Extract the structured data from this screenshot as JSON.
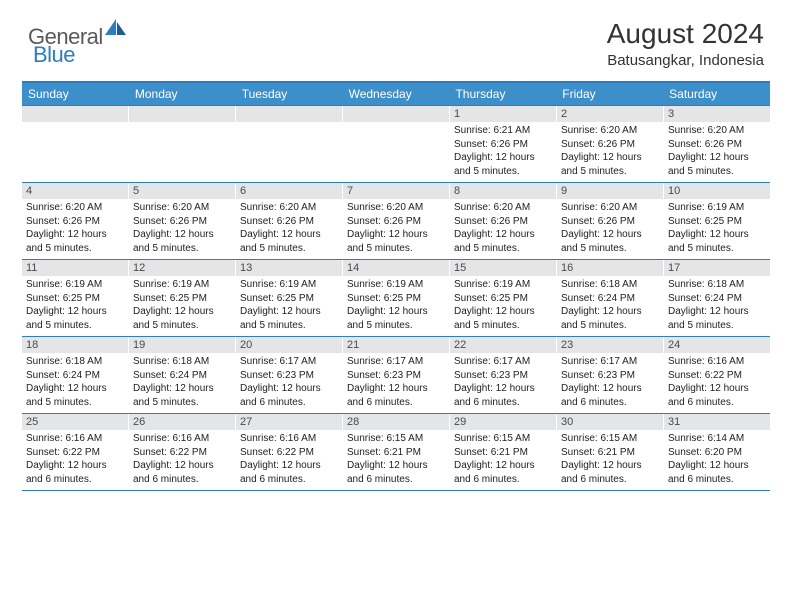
{
  "brand": {
    "general": "General",
    "blue": "Blue"
  },
  "title": "August 2024",
  "location": "Batusangkar, Indonesia",
  "colors": {
    "header_bar": "#3d8fc9",
    "border": "#2d7dc0",
    "day_num_bg": "#e4e5e6",
    "text": "#222222",
    "logo_gray": "#5a5a5a",
    "logo_blue": "#2d7dc0"
  },
  "weekdays": [
    "Sunday",
    "Monday",
    "Tuesday",
    "Wednesday",
    "Thursday",
    "Friday",
    "Saturday"
  ],
  "weeks": [
    [
      {
        "empty": true
      },
      {
        "empty": true
      },
      {
        "empty": true
      },
      {
        "empty": true
      },
      {
        "day": "1",
        "sunrise": "Sunrise: 6:21 AM",
        "sunset": "Sunset: 6:26 PM",
        "daylight": "Daylight: 12 hours and 5 minutes."
      },
      {
        "day": "2",
        "sunrise": "Sunrise: 6:20 AM",
        "sunset": "Sunset: 6:26 PM",
        "daylight": "Daylight: 12 hours and 5 minutes."
      },
      {
        "day": "3",
        "sunrise": "Sunrise: 6:20 AM",
        "sunset": "Sunset: 6:26 PM",
        "daylight": "Daylight: 12 hours and 5 minutes."
      }
    ],
    [
      {
        "day": "4",
        "sunrise": "Sunrise: 6:20 AM",
        "sunset": "Sunset: 6:26 PM",
        "daylight": "Daylight: 12 hours and 5 minutes."
      },
      {
        "day": "5",
        "sunrise": "Sunrise: 6:20 AM",
        "sunset": "Sunset: 6:26 PM",
        "daylight": "Daylight: 12 hours and 5 minutes."
      },
      {
        "day": "6",
        "sunrise": "Sunrise: 6:20 AM",
        "sunset": "Sunset: 6:26 PM",
        "daylight": "Daylight: 12 hours and 5 minutes."
      },
      {
        "day": "7",
        "sunrise": "Sunrise: 6:20 AM",
        "sunset": "Sunset: 6:26 PM",
        "daylight": "Daylight: 12 hours and 5 minutes."
      },
      {
        "day": "8",
        "sunrise": "Sunrise: 6:20 AM",
        "sunset": "Sunset: 6:26 PM",
        "daylight": "Daylight: 12 hours and 5 minutes."
      },
      {
        "day": "9",
        "sunrise": "Sunrise: 6:20 AM",
        "sunset": "Sunset: 6:26 PM",
        "daylight": "Daylight: 12 hours and 5 minutes."
      },
      {
        "day": "10",
        "sunrise": "Sunrise: 6:19 AM",
        "sunset": "Sunset: 6:25 PM",
        "daylight": "Daylight: 12 hours and 5 minutes."
      }
    ],
    [
      {
        "day": "11",
        "sunrise": "Sunrise: 6:19 AM",
        "sunset": "Sunset: 6:25 PM",
        "daylight": "Daylight: 12 hours and 5 minutes."
      },
      {
        "day": "12",
        "sunrise": "Sunrise: 6:19 AM",
        "sunset": "Sunset: 6:25 PM",
        "daylight": "Daylight: 12 hours and 5 minutes."
      },
      {
        "day": "13",
        "sunrise": "Sunrise: 6:19 AM",
        "sunset": "Sunset: 6:25 PM",
        "daylight": "Daylight: 12 hours and 5 minutes."
      },
      {
        "day": "14",
        "sunrise": "Sunrise: 6:19 AM",
        "sunset": "Sunset: 6:25 PM",
        "daylight": "Daylight: 12 hours and 5 minutes."
      },
      {
        "day": "15",
        "sunrise": "Sunrise: 6:19 AM",
        "sunset": "Sunset: 6:25 PM",
        "daylight": "Daylight: 12 hours and 5 minutes."
      },
      {
        "day": "16",
        "sunrise": "Sunrise: 6:18 AM",
        "sunset": "Sunset: 6:24 PM",
        "daylight": "Daylight: 12 hours and 5 minutes."
      },
      {
        "day": "17",
        "sunrise": "Sunrise: 6:18 AM",
        "sunset": "Sunset: 6:24 PM",
        "daylight": "Daylight: 12 hours and 5 minutes."
      }
    ],
    [
      {
        "day": "18",
        "sunrise": "Sunrise: 6:18 AM",
        "sunset": "Sunset: 6:24 PM",
        "daylight": "Daylight: 12 hours and 5 minutes."
      },
      {
        "day": "19",
        "sunrise": "Sunrise: 6:18 AM",
        "sunset": "Sunset: 6:24 PM",
        "daylight": "Daylight: 12 hours and 5 minutes."
      },
      {
        "day": "20",
        "sunrise": "Sunrise: 6:17 AM",
        "sunset": "Sunset: 6:23 PM",
        "daylight": "Daylight: 12 hours and 6 minutes."
      },
      {
        "day": "21",
        "sunrise": "Sunrise: 6:17 AM",
        "sunset": "Sunset: 6:23 PM",
        "daylight": "Daylight: 12 hours and 6 minutes."
      },
      {
        "day": "22",
        "sunrise": "Sunrise: 6:17 AM",
        "sunset": "Sunset: 6:23 PM",
        "daylight": "Daylight: 12 hours and 6 minutes."
      },
      {
        "day": "23",
        "sunrise": "Sunrise: 6:17 AM",
        "sunset": "Sunset: 6:23 PM",
        "daylight": "Daylight: 12 hours and 6 minutes."
      },
      {
        "day": "24",
        "sunrise": "Sunrise: 6:16 AM",
        "sunset": "Sunset: 6:22 PM",
        "daylight": "Daylight: 12 hours and 6 minutes."
      }
    ],
    [
      {
        "day": "25",
        "sunrise": "Sunrise: 6:16 AM",
        "sunset": "Sunset: 6:22 PM",
        "daylight": "Daylight: 12 hours and 6 minutes."
      },
      {
        "day": "26",
        "sunrise": "Sunrise: 6:16 AM",
        "sunset": "Sunset: 6:22 PM",
        "daylight": "Daylight: 12 hours and 6 minutes."
      },
      {
        "day": "27",
        "sunrise": "Sunrise: 6:16 AM",
        "sunset": "Sunset: 6:22 PM",
        "daylight": "Daylight: 12 hours and 6 minutes."
      },
      {
        "day": "28",
        "sunrise": "Sunrise: 6:15 AM",
        "sunset": "Sunset: 6:21 PM",
        "daylight": "Daylight: 12 hours and 6 minutes."
      },
      {
        "day": "29",
        "sunrise": "Sunrise: 6:15 AM",
        "sunset": "Sunset: 6:21 PM",
        "daylight": "Daylight: 12 hours and 6 minutes."
      },
      {
        "day": "30",
        "sunrise": "Sunrise: 6:15 AM",
        "sunset": "Sunset: 6:21 PM",
        "daylight": "Daylight: 12 hours and 6 minutes."
      },
      {
        "day": "31",
        "sunrise": "Sunrise: 6:14 AM",
        "sunset": "Sunset: 6:20 PM",
        "daylight": "Daylight: 12 hours and 6 minutes."
      }
    ]
  ]
}
